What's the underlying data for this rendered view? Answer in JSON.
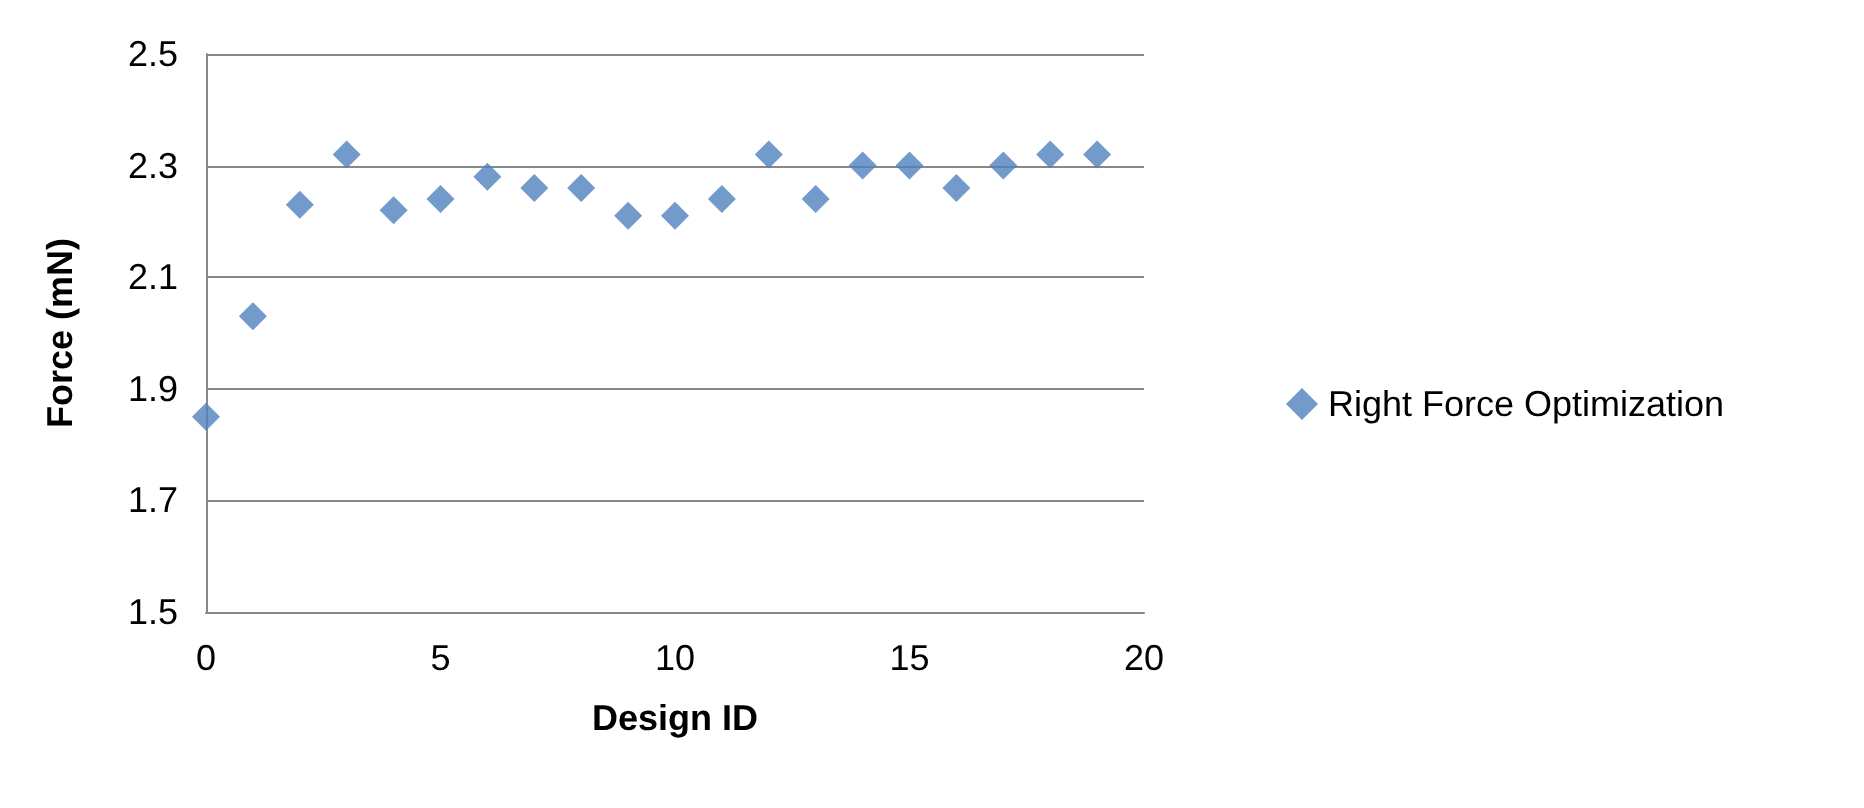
{
  "chart_data": {
    "type": "scatter",
    "xlabel": "Design ID",
    "ylabel": "Force (mN)",
    "x": [
      0,
      1,
      2,
      3,
      4,
      5,
      6,
      7,
      8,
      9,
      10,
      11,
      12,
      13,
      14,
      15,
      16,
      17,
      18,
      19
    ],
    "series": [
      {
        "name": "Right Force Optimization",
        "color": "#4f81bd",
        "values": [
          1.85,
          2.03,
          2.23,
          2.32,
          2.22,
          2.24,
          2.28,
          2.26,
          2.26,
          2.21,
          2.21,
          2.24,
          2.32,
          2.24,
          2.3,
          2.3,
          2.26,
          2.3,
          2.32,
          2.32
        ]
      }
    ],
    "xlim": [
      0,
      20
    ],
    "xticks": [
      0,
      5,
      10,
      15,
      20
    ],
    "ylim": [
      1.5,
      2.5
    ],
    "yticks": [
      1.5,
      1.7,
      1.9,
      2.1,
      2.3,
      2.5
    ],
    "grid": "y",
    "legend": "right",
    "marker": "diamond"
  }
}
